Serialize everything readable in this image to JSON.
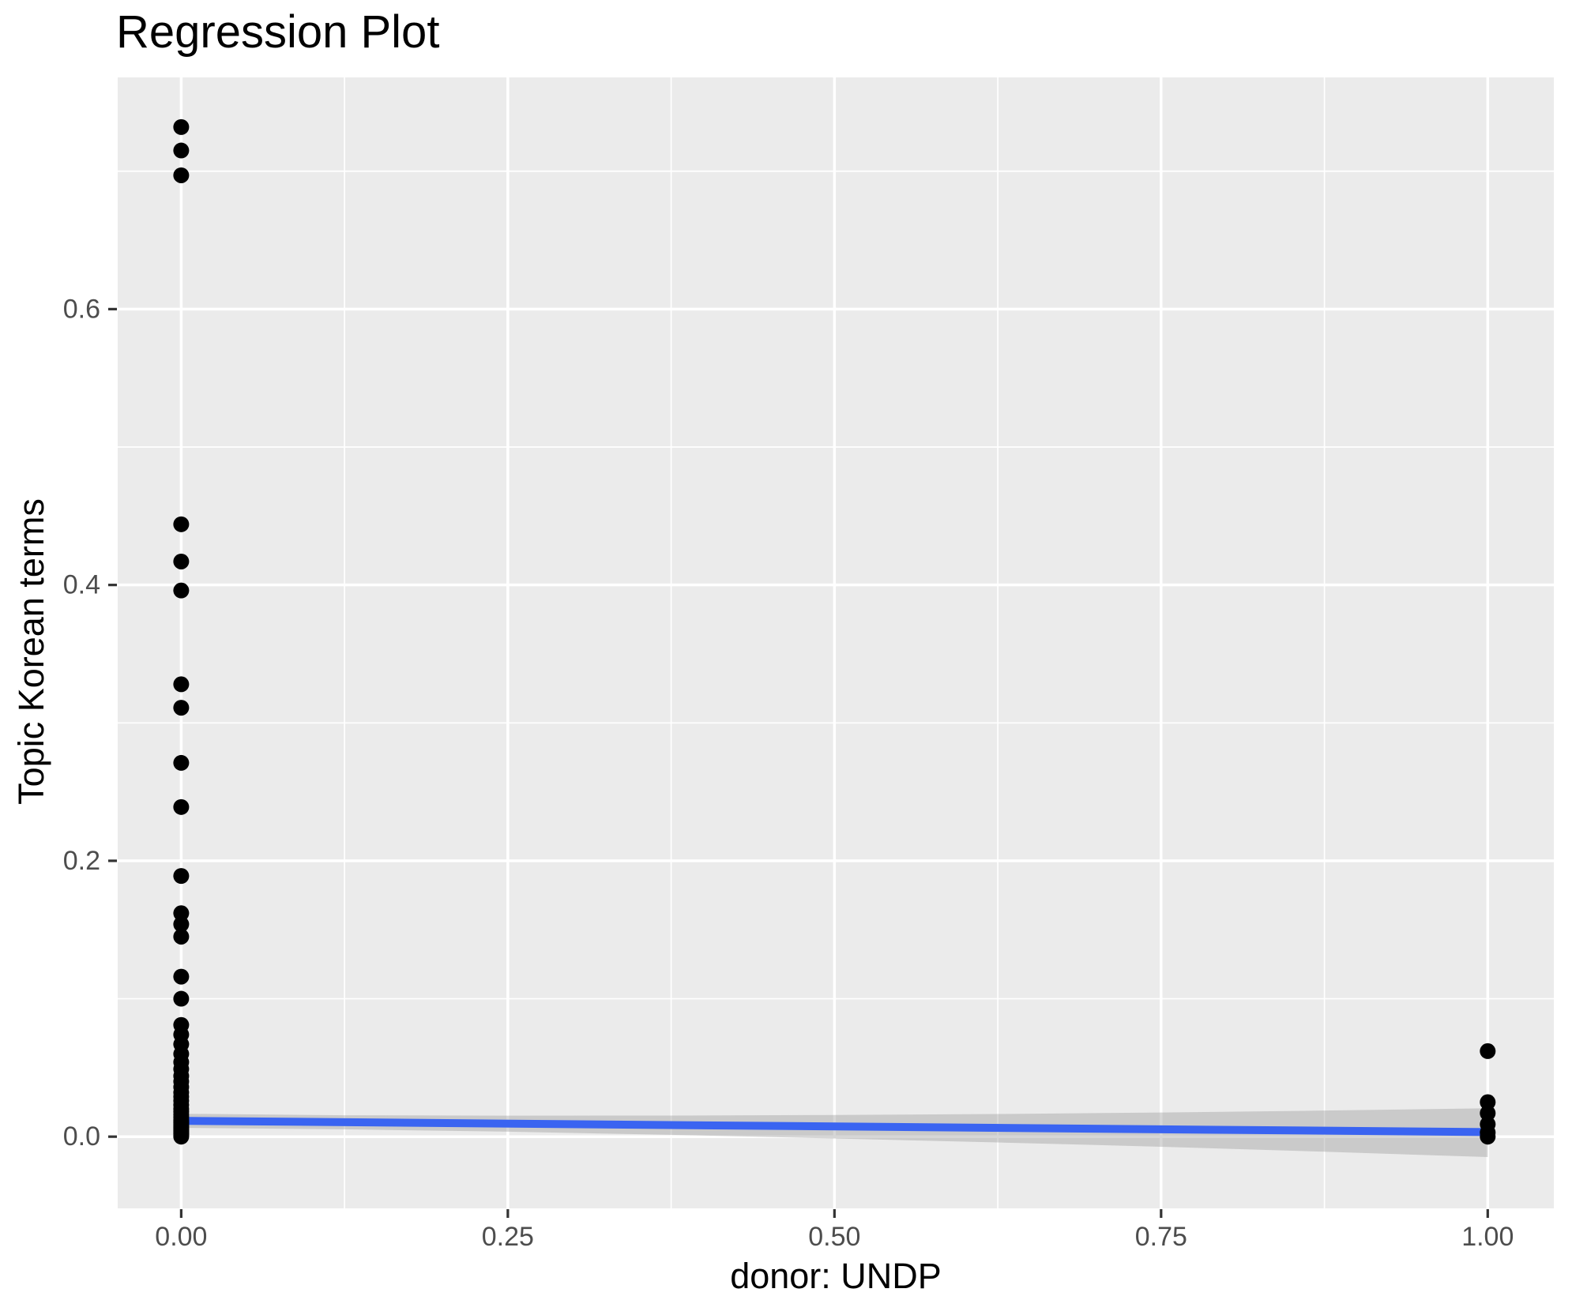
{
  "chart_data": {
    "type": "scatter",
    "title": "Regression Plot",
    "xlabel": "donor: UNDP",
    "ylabel": "Topic Korean terms",
    "xlim": [
      -0.0486,
      1.0506
    ],
    "ylim": [
      -0.052,
      0.768
    ],
    "grid": "on",
    "legend": "none",
    "panel_bg": "#EBEBEB",
    "gridline_color": "#FFFFFF",
    "point_color": "#000000",
    "line_color": "#3A64F1",
    "band_color": "#999999",
    "band_opacity": 0.4,
    "tick_color": "#333333",
    "tick_label_color": "#4D4D4D",
    "x_ticks": [
      {
        "value": 0.0,
        "label": "0.00"
      },
      {
        "value": 0.25,
        "label": "0.25"
      },
      {
        "value": 0.5,
        "label": "0.50"
      },
      {
        "value": 0.75,
        "label": "0.75"
      },
      {
        "value": 1.0,
        "label": "1.00"
      }
    ],
    "y_ticks": [
      {
        "value": 0.0,
        "label": "0.0"
      },
      {
        "value": 0.2,
        "label": "0.2"
      },
      {
        "value": 0.4,
        "label": "0.4"
      },
      {
        "value": 0.6,
        "label": "0.6"
      }
    ],
    "x_minor_gridlines": [
      0.125,
      0.375,
      0.625,
      0.875
    ],
    "y_minor_gridlines": [
      0.1,
      0.3,
      0.5,
      0.7
    ],
    "points": [
      [
        0,
        0.732
      ],
      [
        0,
        0.715
      ],
      [
        0,
        0.697
      ],
      [
        0,
        0.444
      ],
      [
        0,
        0.417
      ],
      [
        0,
        0.396
      ],
      [
        0,
        0.328
      ],
      [
        0,
        0.311
      ],
      [
        0,
        0.271
      ],
      [
        0,
        0.239
      ],
      [
        0,
        0.189
      ],
      [
        0,
        0.162
      ],
      [
        0,
        0.154
      ],
      [
        0,
        0.145
      ],
      [
        0,
        0.116
      ],
      [
        0,
        0.1
      ],
      [
        0,
        0.081
      ],
      [
        0,
        0.074
      ],
      [
        0,
        0.067
      ],
      [
        0,
        0.06
      ],
      [
        0,
        0.054
      ],
      [
        0,
        0.049
      ],
      [
        0,
        0.044
      ],
      [
        0,
        0.04
      ],
      [
        0,
        0.036
      ],
      [
        0,
        0.032
      ],
      [
        0,
        0.029
      ],
      [
        0,
        0.026
      ],
      [
        0,
        0.023
      ],
      [
        0,
        0.02
      ],
      [
        0,
        0.018
      ],
      [
        0,
        0.016
      ],
      [
        0,
        0.014
      ],
      [
        0,
        0.012
      ],
      [
        0,
        0.011
      ],
      [
        0,
        0.01
      ],
      [
        0,
        0.009
      ],
      [
        0,
        0.008
      ],
      [
        0,
        0.007
      ],
      [
        0,
        0.006
      ],
      [
        0,
        0.005
      ],
      [
        0,
        0.004
      ],
      [
        0,
        0.003
      ],
      [
        0,
        0.002
      ],
      [
        0,
        0.001
      ],
      [
        0,
        0.0
      ],
      [
        1,
        0.062
      ],
      [
        1,
        0.025
      ],
      [
        1,
        0.017
      ],
      [
        1,
        0.009
      ],
      [
        1,
        0.003
      ],
      [
        1,
        0.0
      ]
    ],
    "regression_line": {
      "x": [
        0,
        1
      ],
      "y": [
        0.0115,
        0.0033
      ]
    },
    "confidence_band": {
      "x": [
        0,
        0.125,
        0.25,
        0.375,
        0.5,
        0.625,
        0.75,
        0.875,
        1.0
      ],
      "upper": [
        0.0166,
        0.0155,
        0.0152,
        0.0153,
        0.0157,
        0.0164,
        0.0175,
        0.0189,
        0.0206
      ],
      "lower": [
        0.0064,
        0.0053,
        0.0036,
        0.0013,
        -0.0013,
        -0.0042,
        -0.0073,
        -0.0109,
        -0.0148
      ]
    }
  }
}
